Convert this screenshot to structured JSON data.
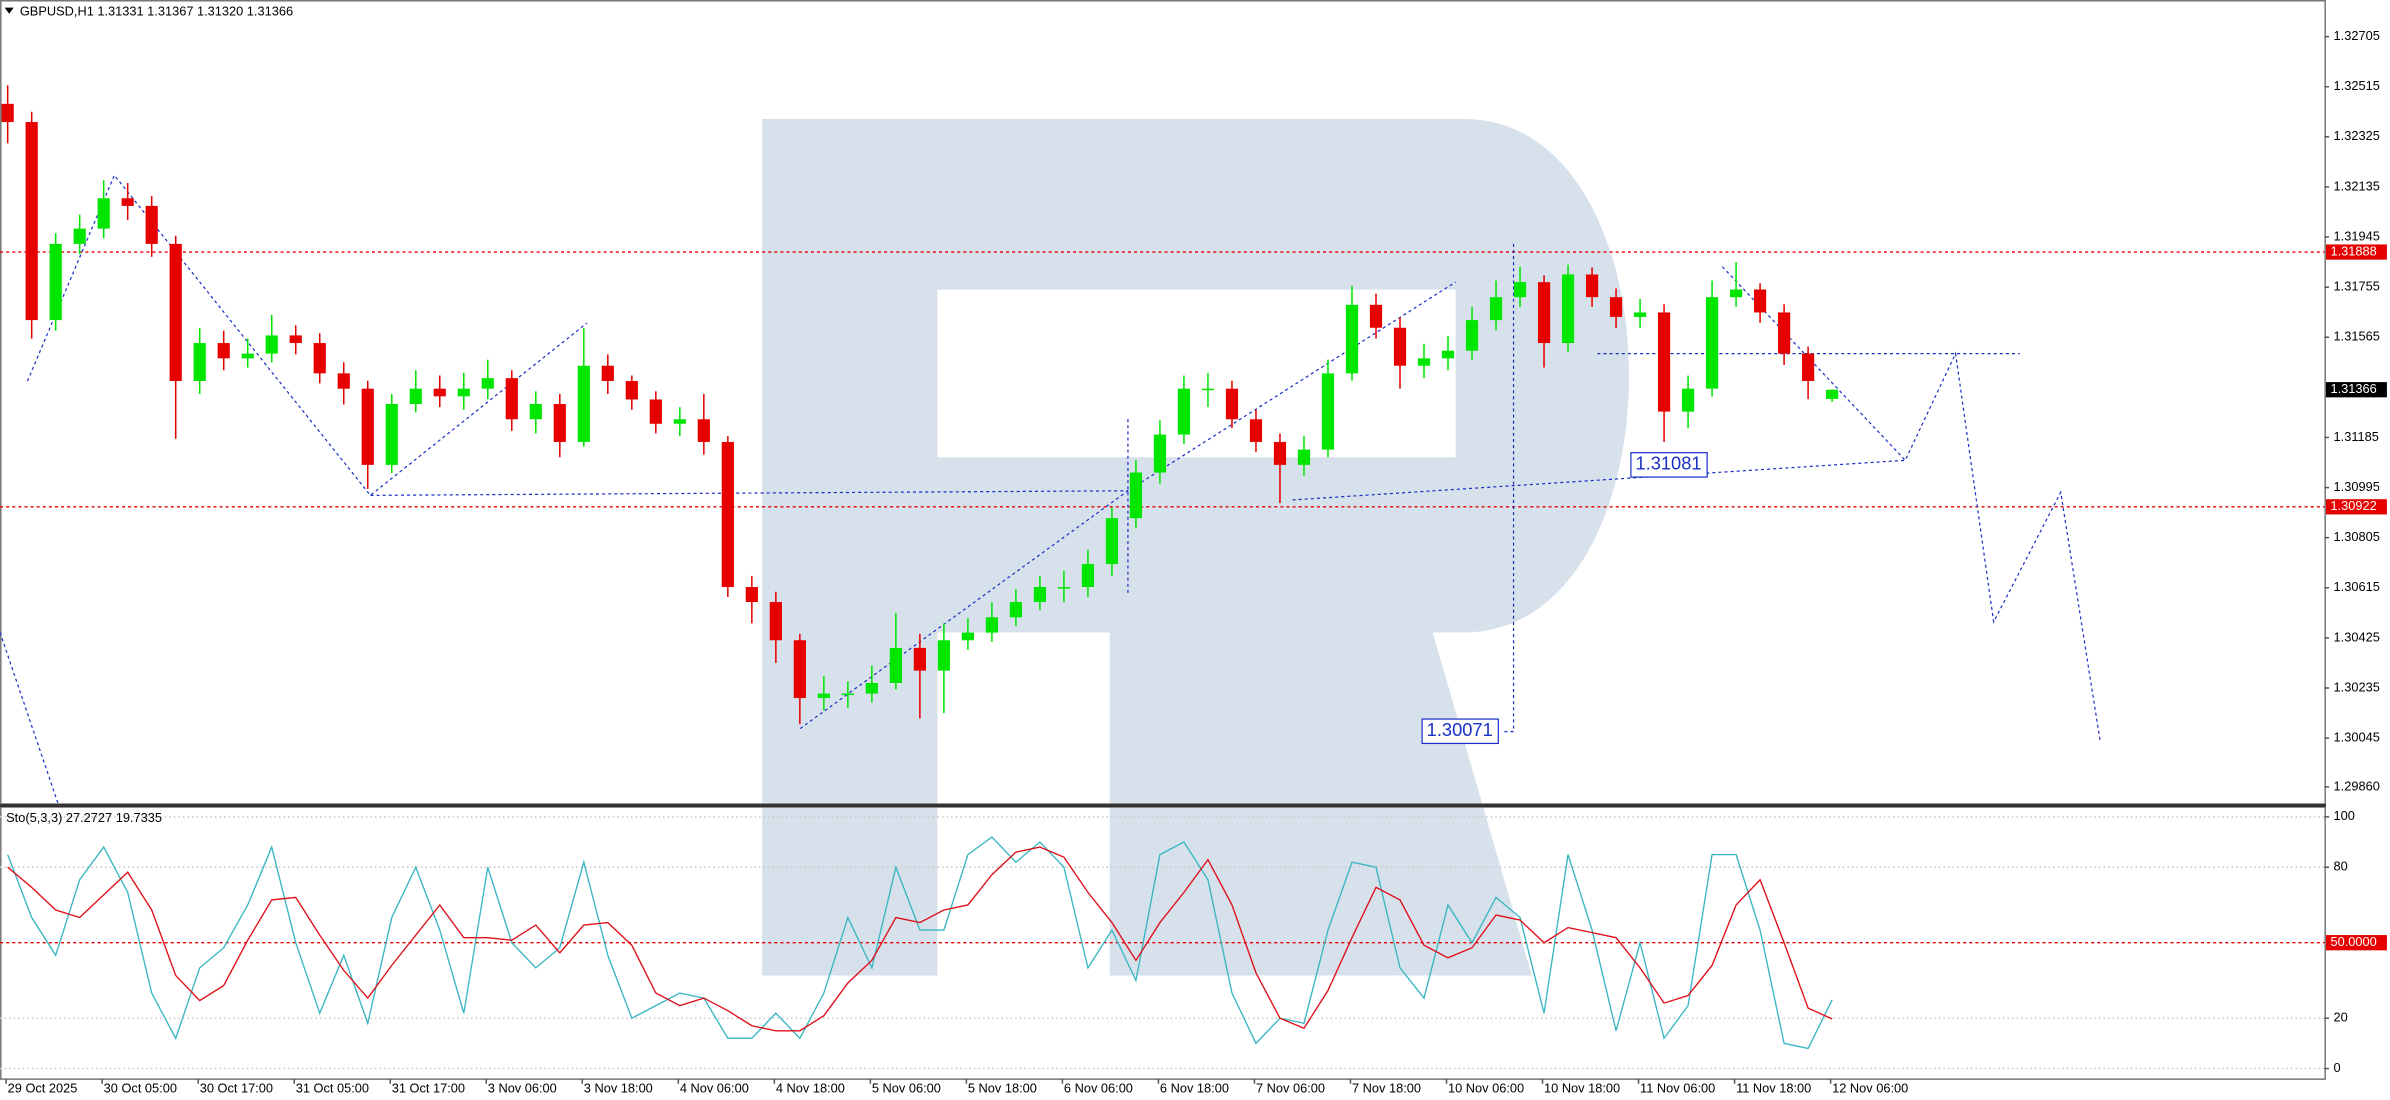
{
  "header": {
    "title": "GBPUSD,H1  1.31331 1.31367 1.31320 1.31366"
  },
  "chart_data": [
    {
      "type": "candlestick",
      "categories": [
        "29 Oct 2025",
        "30 Oct 05:00",
        "30 Oct 17:00",
        "31 Oct 05:00",
        "31 Oct 17:00",
        "3 Nov 06:00",
        "3 Nov 18:00",
        "4 Nov 06:00",
        "4 Nov 18:00",
        "5 Nov 06:00",
        "5 Nov 18:00",
        "6 Nov 06:00",
        "6 Nov 18:00",
        "7 Nov 06:00",
        "7 Nov 18:00",
        "10 Nov 06:00",
        "10 Nov 18:00",
        "11 Nov 06:00",
        "11 Nov 18:00",
        "12 Nov 06:00"
      ],
      "open": [
        1.3245,
        1.32381,
        1.3163,
        1.31919,
        1.31977,
        1.32092,
        1.32063,
        1.31919,
        1.31399,
        1.31543,
        1.31485,
        1.31503,
        1.31572,
        1.31543,
        1.31428,
        1.3137,
        1.31081,
        1.31312,
        1.3137,
        1.31341,
        1.3137,
        1.3141,
        1.31254,
        1.31312,
        1.31168,
        1.31457,
        1.31399,
        1.31329,
        1.31237,
        1.31254,
        1.31168,
        1.30618,
        1.30561,
        1.30416,
        1.30197,
        1.30214,
        1.30214,
        1.30254,
        1.30387,
        1.30301,
        1.30416,
        1.30445,
        1.30503,
        1.30561,
        1.30618,
        1.30618,
        1.30705,
        1.30879,
        1.31052,
        1.31196,
        1.3137,
        1.3137,
        1.31254,
        1.31168,
        1.31081,
        1.31139,
        1.31428,
        1.31688,
        1.31601,
        1.31457,
        1.31485,
        1.31514,
        1.3163,
        1.31717,
        1.31774,
        1.31543,
        1.31803,
        1.31717,
        1.31642,
        1.31659,
        1.31283,
        1.3137,
        1.31717,
        1.31746,
        1.31659,
        1.31503,
        1.31331
      ],
      "high": [
        1.3252,
        1.3242,
        1.3196,
        1.3203,
        1.3216,
        1.3215,
        1.321,
        1.3195,
        1.316,
        1.3159,
        1.3156,
        1.3165,
        1.3161,
        1.3158,
        1.3147,
        1.314,
        1.3135,
        1.3144,
        1.3142,
        1.3143,
        1.3148,
        1.3144,
        1.3136,
        1.3135,
        1.316,
        1.315,
        1.3142,
        1.3136,
        1.313,
        1.3135,
        1.3119,
        1.3066,
        1.306,
        1.3044,
        1.3028,
        1.3026,
        1.3032,
        1.3052,
        1.3044,
        1.3048,
        1.305,
        1.3056,
        1.3061,
        1.3066,
        1.3068,
        1.3076,
        1.3092,
        1.311,
        1.3125,
        1.3142,
        1.3143,
        1.314,
        1.3129,
        1.312,
        1.3119,
        1.3148,
        1.3176,
        1.3173,
        1.3164,
        1.3154,
        1.3157,
        1.3168,
        1.3178,
        1.31832,
        1.318,
        1.3184,
        1.3183,
        1.3175,
        1.3171,
        1.3169,
        1.3142,
        1.3178,
        1.3185,
        1.3177,
        1.3169,
        1.3153,
        1.31367
      ],
      "low": [
        1.323,
        1.3156,
        1.3159,
        1.3188,
        1.3194,
        1.3201,
        1.3187,
        1.3118,
        1.3135,
        1.3144,
        1.3145,
        1.3147,
        1.315,
        1.3139,
        1.3131,
        1.3099,
        1.3105,
        1.3128,
        1.313,
        1.3129,
        1.3133,
        1.3121,
        1.312,
        1.3111,
        1.3115,
        1.3135,
        1.3129,
        1.312,
        1.3119,
        1.3112,
        1.3058,
        1.3048,
        1.3033,
        1.30098,
        1.3015,
        1.3016,
        1.3018,
        1.3023,
        1.3012,
        1.3014,
        1.3038,
        1.3041,
        1.3047,
        1.3053,
        1.3056,
        1.3058,
        1.3066,
        1.3084,
        1.3101,
        1.3116,
        1.313,
        1.3122,
        1.3113,
        1.30936,
        1.3104,
        1.3111,
        1.314,
        1.3156,
        1.3137,
        1.3141,
        1.3144,
        1.3148,
        1.3159,
        1.3168,
        1.3145,
        1.3151,
        1.3168,
        1.316,
        1.316,
        1.31168,
        1.3122,
        1.3134,
        1.3168,
        1.3162,
        1.3146,
        1.3133,
        1.3132
      ],
      "close": [
        1.32381,
        1.3163,
        1.31919,
        1.31977,
        1.32092,
        1.32063,
        1.31919,
        1.31399,
        1.31543,
        1.31485,
        1.31503,
        1.31572,
        1.31543,
        1.31428,
        1.3137,
        1.31081,
        1.31312,
        1.3137,
        1.31341,
        1.3137,
        1.3141,
        1.31254,
        1.31312,
        1.31168,
        1.31457,
        1.31399,
        1.31329,
        1.31237,
        1.31254,
        1.31168,
        1.30618,
        1.30561,
        1.30416,
        1.30197,
        1.30214,
        1.30214,
        1.30254,
        1.30387,
        1.30301,
        1.30416,
        1.30445,
        1.30503,
        1.30561,
        1.30618,
        1.30618,
        1.30705,
        1.30879,
        1.31052,
        1.31196,
        1.3137,
        1.3137,
        1.31254,
        1.31168,
        1.31081,
        1.31139,
        1.31428,
        1.31688,
        1.31601,
        1.31457,
        1.31485,
        1.31514,
        1.3163,
        1.31717,
        1.31774,
        1.31543,
        1.31803,
        1.31717,
        1.31642,
        1.31659,
        1.31283,
        1.3137,
        1.31717,
        1.31746,
        1.31659,
        1.31503,
        1.31399,
        1.31366
      ],
      "bull_color": "#00e600",
      "bear_color": "#e60000",
      "ylim": [
        1.29798,
        1.32838
      ],
      "yticks": [
        1.32705,
        1.32515,
        1.32325,
        1.32135,
        1.31945,
        1.31755,
        1.31565,
        1.31185,
        1.30995,
        1.30805,
        1.30615,
        1.30425,
        1.30235,
        1.30045,
        {
          "value": 1.2986,
          "label": "1.29860"
        }
      ],
      "levels": [
        {
          "value": 1.31888,
          "color": "#e60000"
        },
        {
          "value": 1.30922,
          "color": "#e60000"
        }
      ],
      "last_price": 1.31366,
      "price_labels": [
        1.31081,
        1.30071
      ],
      "grid": false
    },
    {
      "type": "line",
      "title": "Sto(5,3,3) 27.2727 19.7335",
      "series": [
        {
          "name": "Main",
          "color": "#3ab7c2",
          "values": [
            85,
            60,
            45,
            75,
            88,
            70,
            30,
            12,
            40,
            48,
            65,
            88,
            50,
            22,
            45,
            18,
            60,
            80,
            55,
            22,
            80,
            50,
            40,
            48,
            82,
            45,
            20,
            25,
            30,
            28,
            12,
            12,
            22,
            12,
            30,
            60,
            40,
            80,
            55,
            55,
            85,
            92,
            82,
            90,
            80,
            40,
            55,
            35,
            85,
            90,
            75,
            30,
            10,
            20,
            18,
            55,
            82,
            80,
            40,
            28,
            65,
            50,
            68,
            60,
            22,
            85,
            55,
            15,
            50,
            12,
            25,
            85,
            85,
            55,
            10,
            8,
            27.2727
          ]
        },
        {
          "name": "Signal",
          "color": "#e0101a",
          "values": [
            80,
            72,
            63,
            60,
            69,
            78,
            63,
            37,
            27,
            33,
            51,
            67,
            68,
            53,
            39,
            28,
            41,
            53,
            65,
            52,
            52,
            51,
            57,
            46,
            57,
            58,
            49,
            30,
            25,
            28,
            23,
            17,
            15,
            15,
            21,
            34,
            43,
            60,
            58,
            63,
            65,
            77,
            86,
            88,
            84,
            70,
            58,
            43,
            58,
            70,
            83,
            65,
            38,
            20,
            16,
            31,
            52,
            72,
            67,
            49,
            44,
            48,
            61,
            59,
            50,
            56,
            54,
            52,
            40,
            26,
            29,
            41,
            65,
            75,
            50,
            24,
            19.7335
          ]
        }
      ],
      "ylim": [
        -4.2,
        104.2
      ],
      "yticks": [
        100,
        80,
        20,
        0
      ],
      "levels": [
        {
          "value": 50,
          "label": "50.0000",
          "color": "#e60000"
        }
      ],
      "grid": true
    }
  ]
}
